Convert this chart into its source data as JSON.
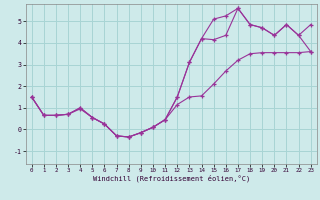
{
  "xlabel": "Windchill (Refroidissement éolien,°C)",
  "bg_color": "#ceeaea",
  "grid_color": "#a8d4d4",
  "line_color": "#993399",
  "xlim": [
    -0.5,
    23.5
  ],
  "ylim": [
    -1.6,
    5.8
  ],
  "xticks": [
    0,
    1,
    2,
    3,
    4,
    5,
    6,
    7,
    8,
    9,
    10,
    11,
    12,
    13,
    14,
    15,
    16,
    17,
    18,
    19,
    20,
    21,
    22,
    23
  ],
  "yticks": [
    -1,
    0,
    1,
    2,
    3,
    4,
    5
  ],
  "line1_x": [
    0,
    1,
    2,
    3,
    4,
    5,
    6,
    7,
    8,
    9,
    10,
    11,
    12,
    13,
    14,
    15,
    16,
    17,
    18,
    19,
    20,
    21,
    22,
    23
  ],
  "line1_y": [
    1.5,
    0.65,
    0.65,
    0.7,
    1.0,
    0.55,
    0.25,
    -0.3,
    -0.35,
    -0.15,
    0.1,
    0.45,
    1.5,
    3.1,
    4.2,
    5.1,
    5.25,
    5.6,
    4.85,
    4.7,
    4.35,
    4.85,
    4.35,
    4.85
  ],
  "line2_x": [
    0,
    1,
    2,
    3,
    4,
    5,
    6,
    7,
    8,
    9,
    10,
    11,
    12,
    13,
    14,
    15,
    16,
    17,
    18,
    19,
    20,
    21,
    22,
    23
  ],
  "line2_y": [
    1.5,
    0.65,
    0.65,
    0.7,
    1.0,
    0.55,
    0.25,
    -0.3,
    -0.35,
    -0.15,
    0.1,
    0.45,
    1.5,
    3.1,
    4.2,
    4.15,
    4.35,
    5.6,
    4.85,
    4.7,
    4.35,
    4.85,
    4.35,
    3.6
  ],
  "line3_x": [
    0,
    1,
    2,
    3,
    4,
    5,
    6,
    7,
    8,
    9,
    10,
    11,
    12,
    13,
    14,
    15,
    16,
    17,
    18,
    19,
    20,
    21,
    22,
    23
  ],
  "line3_y": [
    1.5,
    0.65,
    0.65,
    0.7,
    0.95,
    0.55,
    0.25,
    -0.3,
    -0.35,
    -0.15,
    0.1,
    0.45,
    1.15,
    1.5,
    1.55,
    2.1,
    2.7,
    3.2,
    3.5,
    3.55,
    3.55,
    3.55,
    3.55,
    3.6
  ]
}
